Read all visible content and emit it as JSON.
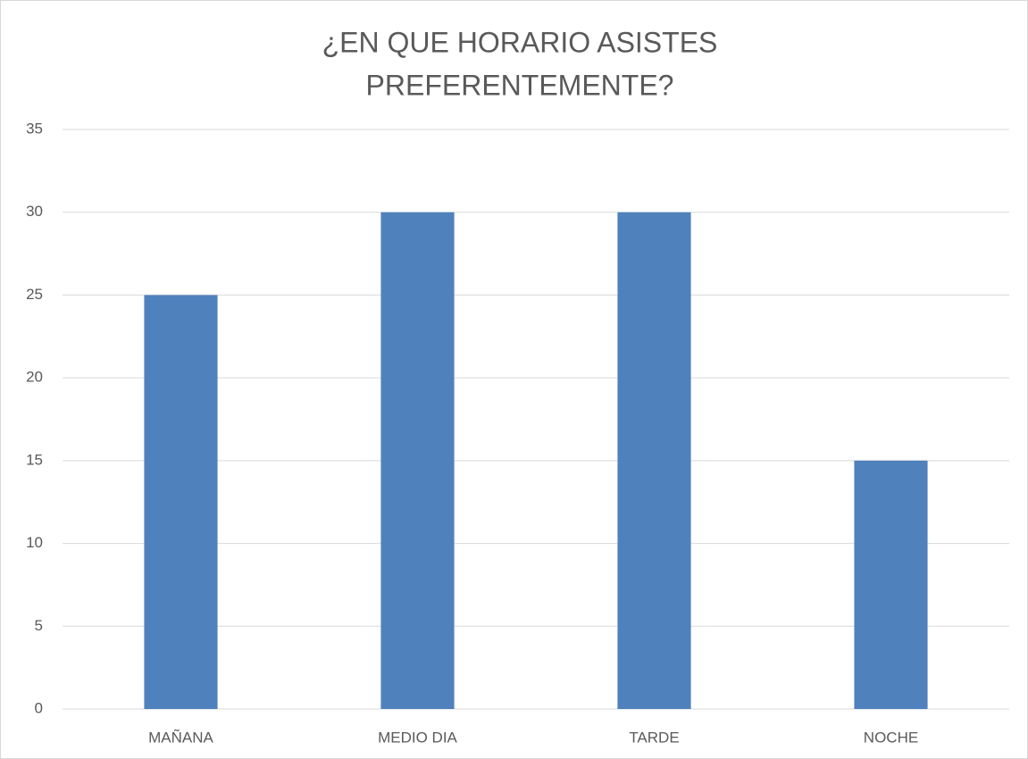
{
  "chart_data": {
    "type": "bar",
    "title": [
      "¿EN QUE HORARIO ASISTES",
      "PREFERENTEMENTE?"
    ],
    "categories": [
      "MAÑANA",
      "MEDIO DIA",
      "TARDE",
      "NOCHE"
    ],
    "values": [
      25,
      30,
      30,
      15
    ],
    "color": "#4f81bd",
    "ylim": [
      0,
      35
    ],
    "yticks": [
      0,
      5,
      10,
      15,
      20,
      25,
      30,
      35
    ],
    "grid": true
  }
}
